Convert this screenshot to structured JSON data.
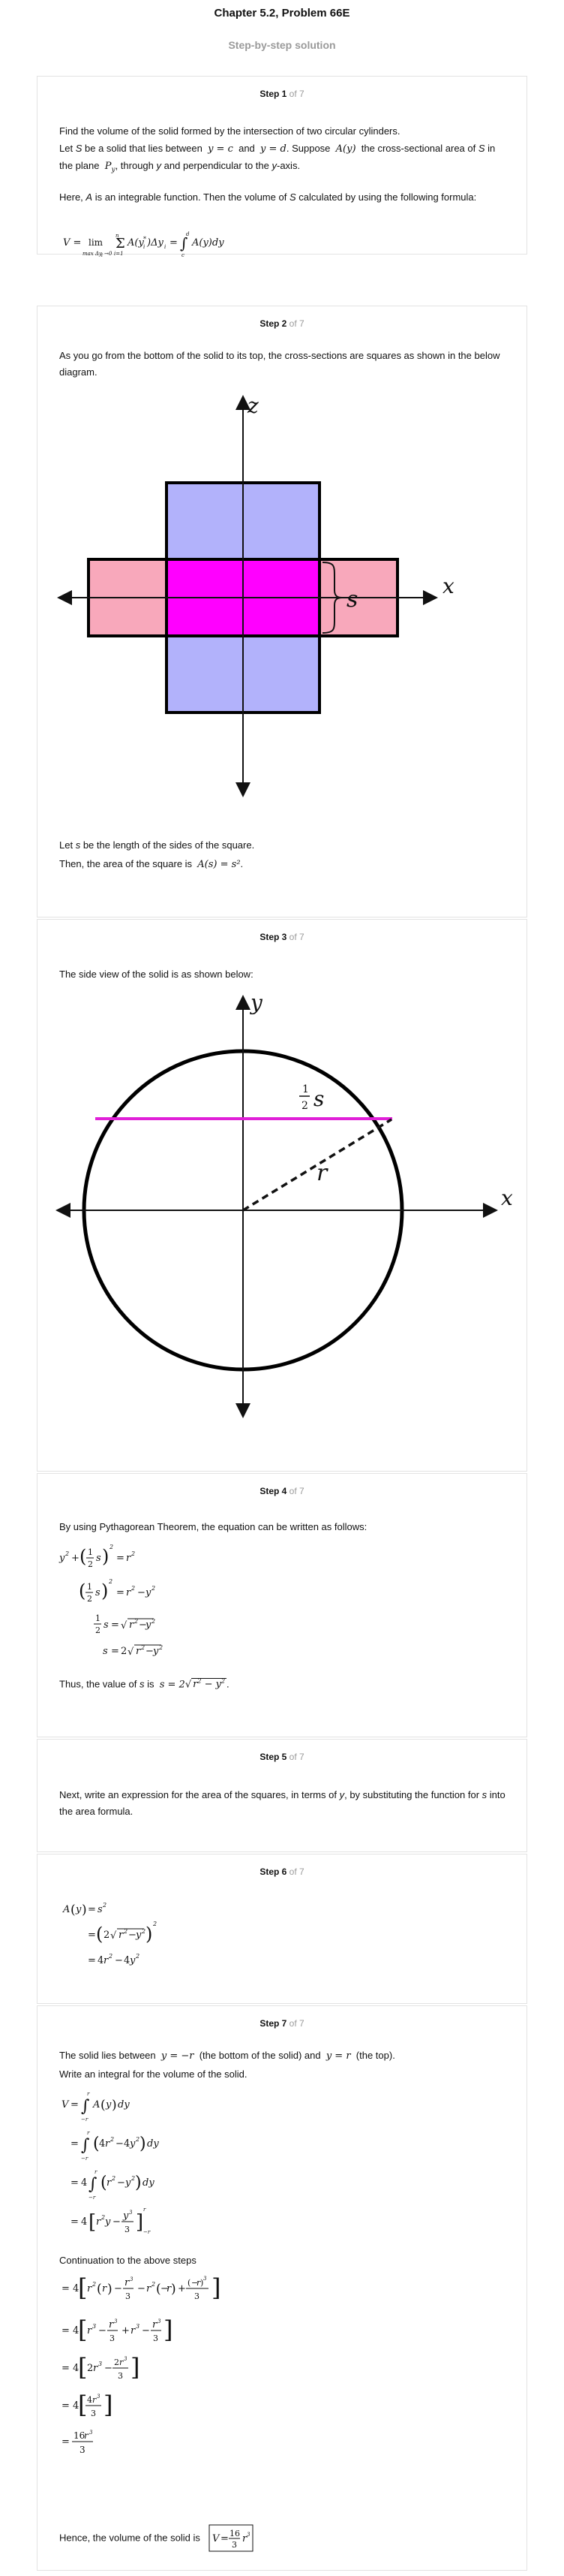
{
  "header": {
    "title": "Chapter 5.2, Problem 66E",
    "subtitle": "Step-by-step solution"
  },
  "steps": [
    {
      "label": "Step 1",
      "of": "of 7",
      "text": {
        "intro": "Find the volume of the solid formed by the intersection of two circular cylinders.",
        "def_a": "Let",
        "def_s": "S",
        "def_b": "be a solid that lies between",
        "def_yc": "y = c",
        "def_and": "and",
        "def_yd": "y = d",
        "def_c": ". Suppose",
        "def_ay": "A(y)",
        "def_d": "the cross-sectional area",
        "def_e": "of",
        "def_f": "in the plane",
        "def_py": "P",
        "def_g": ", through",
        "def_gy": "y",
        "def_h": "and perpendicular to the",
        "def_hy": "y",
        "def_i": "-axis.",
        "here_a": "Here,",
        "here_A": "A",
        "here_b": "is an integrable function. Then the volume of",
        "here_S": "S",
        "here_c": "calculated by using the following formula:"
      }
    },
    {
      "label": "Step 2",
      "of": "of 7",
      "text": {
        "p1": "As you go from the bottom of the solid to its top, the cross-sections are squares as shown in the below diagram.",
        "p2a": "Let",
        "p2s": "s",
        "p2b": "be the length of the sides of the square.",
        "p3": "Then, the area of the square is",
        "p3math": "A(s) = s²"
      }
    },
    {
      "label": "Step 3",
      "of": "of 7",
      "text": {
        "p1": "The side view of the solid is as shown below:"
      }
    },
    {
      "label": "Step 4",
      "of": "of 7",
      "text": {
        "p1": "By using Pythagorean Theorem, the equation can be written as follows:",
        "p2a": "Thus, the value of",
        "p2s": "s",
        "p2b": "is"
      }
    },
    {
      "label": "Step 5",
      "of": "of 7",
      "text": {
        "p1a": "Next, write an expression for the area of the squares, in terms of",
        "p1y": "y",
        "p1b": ", by substituting the function for",
        "p1s": "s",
        "p1c": "into the area formula."
      }
    },
    {
      "label": "Step 6",
      "of": "of 7",
      "text": {}
    },
    {
      "label": "Step 7",
      "of": "of 7",
      "text": {
        "p1a": "The solid lies between",
        "p1m1": "y = −r",
        "p1b": "(the bottom of the solid) and",
        "p1m2": "y = r",
        "p1c": "(the top).",
        "p2": "Write an integral for the volume of the solid.",
        "p3": "Continuation to the above steps",
        "p4": "Hence, the volume of the solid is"
      }
    }
  ],
  "figure_labels": {
    "fig1_z": "z",
    "fig1_x": "x",
    "fig1_s": "s",
    "fig2_y": "y",
    "fig2_x": "x",
    "fig2_r": "r",
    "fig2_half_num": "1",
    "fig2_half_den": "2",
    "fig2_s": "s"
  },
  "colors": {
    "lavender": "#b2b2fb",
    "pink": "#f8a8bb",
    "magenta": "#ff00ff",
    "card_border": "#e3e3e3",
    "muted": "#9a9a9a"
  }
}
